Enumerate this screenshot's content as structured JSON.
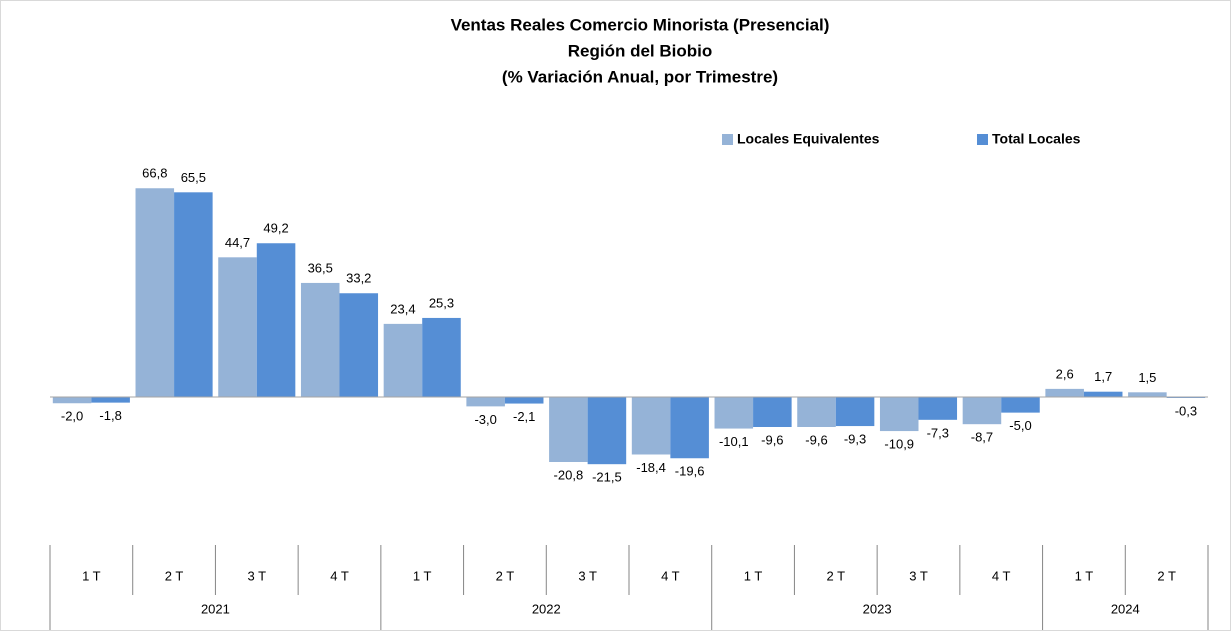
{
  "chart_data": {
    "type": "bar",
    "title": [
      "Ventas Reales Comercio Minorista (Presencial)",
      "Región del Biobio",
      "(% Variación Anual, por Trimestre)"
    ],
    "categories": [
      "1 T",
      "2 T",
      "3 T",
      "4 T",
      "1 T",
      "2 T",
      "3 T",
      "4 T",
      "1 T",
      "2 T",
      "3 T",
      "4 T",
      "1 T",
      "2 T"
    ],
    "groups": [
      {
        "name": "2021",
        "count": 4
      },
      {
        "name": "2022",
        "count": 4
      },
      {
        "name": "2023",
        "count": 4
      },
      {
        "name": "2024",
        "count": 2
      }
    ],
    "series": [
      {
        "name": "Locales Equivalentes",
        "color": "#95b3d7",
        "values": [
          -2.0,
          66.8,
          44.7,
          36.5,
          23.4,
          -3.0,
          -20.8,
          -18.4,
          -10.1,
          -9.6,
          -10.9,
          -8.7,
          2.6,
          1.5
        ],
        "value_labels": [
          "-2,0",
          "66,8",
          "44,7",
          "36,5",
          "23,4",
          "-3,0",
          "-20,8",
          "-18,4",
          "-10,1",
          "-9,6",
          "-10,9",
          "-8,7",
          "2,6",
          "1,5"
        ]
      },
      {
        "name": "Total Locales",
        "color": "#558ed5",
        "values": [
          -1.8,
          65.5,
          49.2,
          33.2,
          25.3,
          -2.1,
          -21.5,
          -19.6,
          -9.6,
          -9.3,
          -7.3,
          -5.0,
          1.7,
          -0.3
        ],
        "value_labels": [
          "-1,8",
          "65,5",
          "49,2",
          "33,2",
          "25,3",
          "-2,1",
          "-21,5",
          "-19,6",
          "-9,6",
          "-9,3",
          "-7,3",
          "-5,0",
          "1,7",
          "-0,3"
        ]
      }
    ],
    "ylim": [
      -40,
      80
    ],
    "legend": "top-right"
  }
}
